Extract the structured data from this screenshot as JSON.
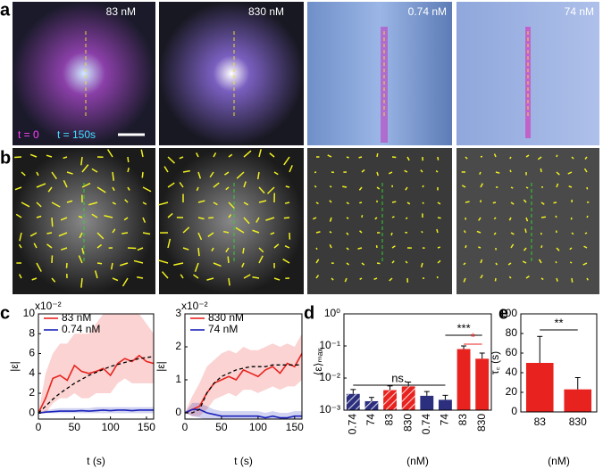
{
  "panel_labels": [
    "a",
    "b",
    "c",
    "d",
    "e"
  ],
  "images": [
    {
      "label": "83 nM"
    },
    {
      "label": "830 nM"
    },
    {
      "label": "0.74 nM"
    },
    {
      "label": "74 nM"
    }
  ],
  "overlay": {
    "t0": "t = 0",
    "t1": "t = 150s"
  },
  "chart_data": [
    {
      "type": "line",
      "y_multiplier": "x10⁻²",
      "xlabel": "t (s)",
      "ylabel": "|ε|",
      "x": [
        0,
        10,
        20,
        30,
        40,
        50,
        60,
        70,
        80,
        90,
        100,
        110,
        120,
        130,
        140,
        150,
        160
      ],
      "xlim": [
        0,
        160
      ],
      "xticks": [
        0,
        50,
        100,
        150
      ],
      "ylim": [
        -0.6,
        10
      ],
      "yticks": [
        0,
        2,
        4,
        6,
        8,
        10
      ],
      "series": [
        {
          "name": "83 nM",
          "color": "#e8231f",
          "values": [
            0,
            1.5,
            3.5,
            3.8,
            3.3,
            4.8,
            4.2,
            4.0,
            4.2,
            4.5,
            3.8,
            5.0,
            5.5,
            5.2,
            5.8,
            5.2,
            5.0
          ],
          "lower": [
            0,
            0,
            1,
            1.5,
            1.5,
            2,
            1.5,
            1.5,
            2,
            2,
            2,
            3,
            3.5,
            3,
            3,
            3,
            3
          ],
          "upper": [
            0,
            4,
            6,
            7,
            7,
            8,
            8,
            8,
            9,
            10,
            10,
            10,
            10,
            10,
            10,
            9,
            8
          ]
        },
        {
          "name": "0.74 nM",
          "color": "#1a22b8",
          "values": [
            0,
            0.1,
            0.15,
            0.2,
            0.2,
            0.2,
            0.25,
            0.2,
            0.25,
            0.3,
            0.25,
            0.3,
            0.3,
            0.25,
            0.3,
            0.3,
            0.3
          ],
          "lower": [
            0,
            0,
            0,
            0,
            0,
            0,
            0,
            0,
            0,
            0,
            0,
            0,
            0,
            0,
            0,
            0,
            0
          ],
          "upper": [
            0,
            0.3,
            0.4,
            0.5,
            0.5,
            0.5,
            0.5,
            0.5,
            0.6,
            0.6,
            0.6,
            0.6,
            0.6,
            0.6,
            0.6,
            0.6,
            0.6
          ]
        }
      ],
      "fit": {
        "color": "#000000",
        "values": [
          0,
          0.7,
          1.4,
          2.0,
          2.5,
          3.0,
          3.4,
          3.8,
          4.1,
          4.4,
          4.7,
          4.9,
          5.1,
          5.3,
          5.5,
          5.6,
          5.7
        ]
      }
    },
    {
      "type": "line",
      "y_multiplier": "x10⁻²",
      "xlabel": "t (s)",
      "ylabel": "|ε|",
      "x": [
        0,
        10,
        20,
        30,
        40,
        50,
        60,
        70,
        80,
        90,
        100,
        110,
        120,
        130,
        140,
        150,
        160
      ],
      "xlim": [
        0,
        160
      ],
      "xticks": [
        0,
        50,
        100,
        150
      ],
      "ylim": [
        -0.19,
        3
      ],
      "yticks": [
        0,
        1,
        2,
        3
      ],
      "series": [
        {
          "name": "830 nM",
          "color": "#e8231f",
          "values": [
            0,
            0.1,
            0.2,
            0.6,
            0.9,
            1.0,
            1.1,
            1.0,
            1.3,
            1.2,
            1.1,
            1.3,
            1.4,
            1.2,
            1.5,
            1.4,
            1.8
          ],
          "lower": [
            0,
            -0.1,
            -0.1,
            0.1,
            0.4,
            0.5,
            0.6,
            0.5,
            0.7,
            0.7,
            0.6,
            0.7,
            0.8,
            0.7,
            0.8,
            0.8,
            1.0
          ],
          "upper": [
            0,
            0.5,
            0.9,
            1.4,
            1.6,
            1.8,
            1.9,
            1.8,
            2.0,
            1.9,
            1.9,
            2.0,
            2.1,
            2.0,
            2.1,
            2.0,
            2.4
          ]
        },
        {
          "name": "74 nM",
          "color": "#1a22b8",
          "values": [
            0,
            0.1,
            0.1,
            0,
            -0.05,
            -0.1,
            -0.1,
            -0.1,
            -0.1,
            -0.1,
            -0.1,
            -0.15,
            -0.1,
            -0.15,
            -0.15,
            -0.1,
            -0.1
          ],
          "lower": [
            0,
            -0.1,
            -0.15,
            -0.2,
            -0.2,
            -0.19,
            -0.19,
            -0.19,
            -0.19,
            -0.19,
            -0.19,
            -0.19,
            -0.19,
            -0.19,
            -0.19,
            -0.19,
            -0.19
          ],
          "upper": [
            0,
            0.3,
            0.3,
            0.2,
            0.1,
            0.05,
            0.05,
            0.05,
            0.05,
            0.05,
            0.05,
            0.0,
            0.05,
            0.0,
            0.0,
            0.05,
            0.05
          ]
        }
      ],
      "fit": {
        "color": "#000000",
        "values": [
          0,
          0,
          0.1,
          0.6,
          0.9,
          1.1,
          1.2,
          1.3,
          1.35,
          1.4,
          1.4,
          1.4,
          1.45,
          1.45,
          1.45,
          1.45,
          1.45
        ]
      }
    },
    {
      "type": "logbar",
      "ylabel": "⟨ε⟩ₘₐₓ",
      "xlabel": "(nM)",
      "log_y": true,
      "categories": [
        "0.74",
        "74",
        "83",
        "830",
        "0.74",
        "74",
        "83",
        "830"
      ],
      "values": [
        0.0032,
        0.0019,
        0.0042,
        0.0055,
        0.0028,
        0.0021,
        0.08,
        0.04
      ],
      "errors": [
        0.0012,
        0.0006,
        0.0015,
        0.002,
        0.001,
        0.0008,
        0.02,
        0.02
      ],
      "colors": [
        "#2b2f7e",
        "#2b2f7e",
        "#e8231f",
        "#e8231f",
        "#2b2f7e",
        "#2b2f7e",
        "#e8231f",
        "#e8231f"
      ],
      "hatched": [
        true,
        true,
        true,
        true,
        false,
        false,
        false,
        false
      ],
      "ylim": [
        0.001,
        1
      ],
      "yticks": [
        {
          "value": 0.001,
          "label": "10⁻³"
        },
        {
          "value": 0.01,
          "label": "10⁻²"
        },
        {
          "value": 0.1,
          "label": "10⁻¹"
        },
        {
          "value": 1,
          "label": "10⁰"
        }
      ],
      "annotations": [
        {
          "text": "ns.",
          "color": "#000000"
        },
        {
          "text": "***",
          "color": "#000000"
        },
        {
          "text": "*",
          "color": "#e8231f"
        }
      ]
    },
    {
      "type": "bar",
      "ylabel": "τ꜀ (s)",
      "xlabel": "(nM)",
      "categories": [
        "83",
        "830"
      ],
      "values": [
        50,
        23
      ],
      "errors": [
        27,
        12
      ],
      "color": "#e8231f",
      "ylim": [
        0,
        100
      ],
      "yticks": [
        0,
        20,
        40,
        60,
        80,
        100
      ],
      "annotations": [
        {
          "text": "**",
          "color": "#000000"
        }
      ]
    }
  ]
}
